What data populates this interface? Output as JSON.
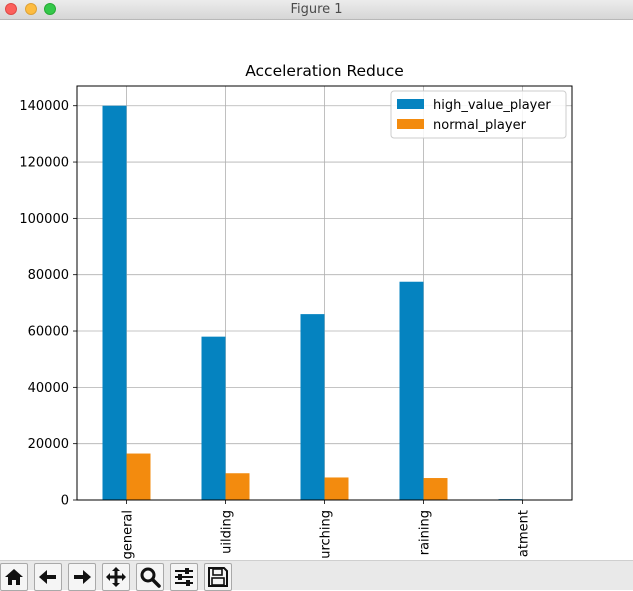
{
  "window": {
    "title": "Figure 1"
  },
  "toolbar": {
    "buttons": [
      {
        "name": "home-button",
        "icon": "home-icon"
      },
      {
        "name": "back-button",
        "icon": "arrow-left-icon"
      },
      {
        "name": "forward-button",
        "icon": "arrow-right-icon"
      },
      {
        "name": "pan-button",
        "icon": "move-icon"
      },
      {
        "name": "zoom-button",
        "icon": "magnifier-icon"
      },
      {
        "name": "configure-subplots-button",
        "icon": "sliders-icon"
      },
      {
        "name": "save-button",
        "icon": "floppy-disk-icon"
      }
    ]
  },
  "chart_data": {
    "type": "bar",
    "title": "Acceleration Reduce",
    "xlabel": "",
    "ylabel": "",
    "categories": [
      "general",
      "uilding",
      "urching",
      "raining",
      "atment"
    ],
    "series": [
      {
        "name": "high_value_player",
        "color": "#0583c0",
        "values": [
          140000,
          58000,
          66000,
          77500,
          300
        ]
      },
      {
        "name": "normal_player",
        "color": "#f38b0e",
        "values": [
          16500,
          9500,
          8000,
          7800,
          0
        ]
      }
    ],
    "yticks": [
      0,
      20000,
      40000,
      60000,
      80000,
      100000,
      120000,
      140000
    ],
    "ylim": [
      0,
      147000
    ],
    "grid": true,
    "legend_position": "top-right"
  }
}
